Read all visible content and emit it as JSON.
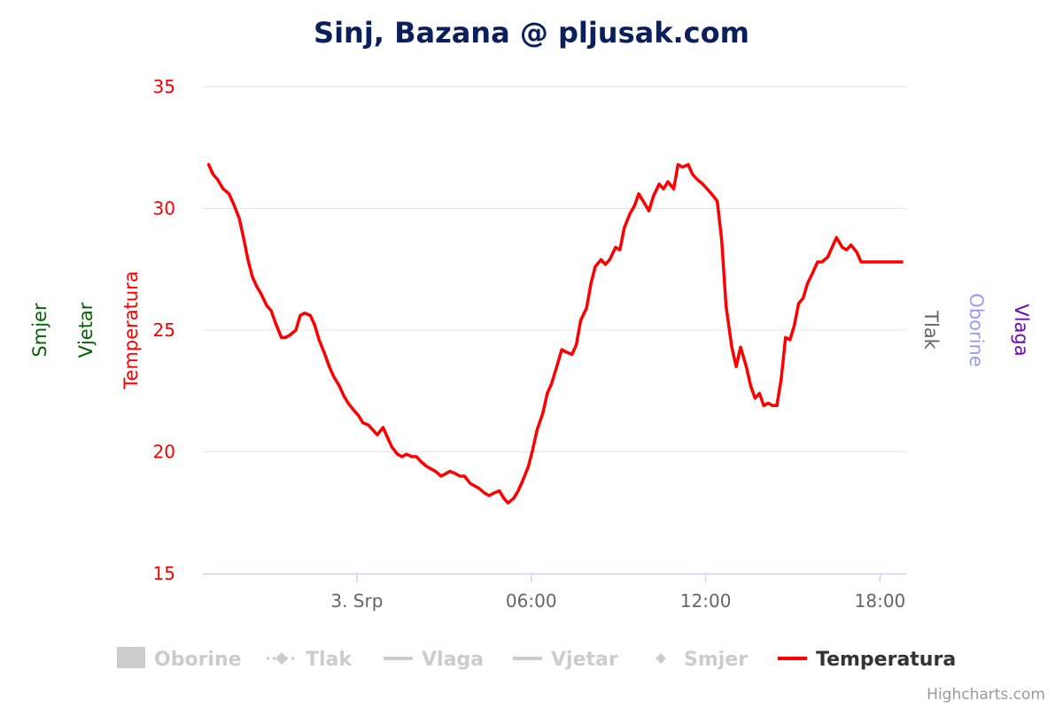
{
  "chart_data": {
    "type": "line",
    "title": "Sinj, Bazana @ pljusak.com",
    "title_color": "#0b1f5c",
    "x_tick_labels": [
      "3. Srp",
      "06:00",
      "12:00",
      "18:00"
    ],
    "x_tick_hours": [
      0,
      6,
      12,
      18
    ],
    "x_range_hours": [
      -5.3,
      18.9
    ],
    "y_axis": {
      "title": "Temperatura",
      "color": "#ff0000",
      "range": [
        15,
        35
      ],
      "ticks": [
        15,
        20,
        25,
        30,
        35
      ]
    },
    "other_axis_titles": {
      "smjer": {
        "label": "Smjer",
        "color": "#006400"
      },
      "vjetar": {
        "label": "Vjetar",
        "color": "#006400"
      },
      "tlak": {
        "label": "Tlak",
        "color": "#666666"
      },
      "oborine": {
        "label": "Oborine",
        "color": "#9999ff"
      },
      "vlaga": {
        "label": "Vlaga",
        "color": "#6a0dad"
      }
    },
    "series": [
      {
        "name": "Temperatura",
        "color": "#ff0000",
        "x_hours": [
          -5.1,
          -4.95,
          -4.8,
          -4.6,
          -4.4,
          -4.25,
          -4.05,
          -3.9,
          -3.75,
          -3.6,
          -3.45,
          -3.3,
          -3.1,
          -2.95,
          -2.8,
          -2.6,
          -2.45,
          -2.3,
          -2.1,
          -1.95,
          -1.8,
          -1.6,
          -1.45,
          -1.3,
          -1.1,
          -0.95,
          -0.8,
          -0.6,
          -0.45,
          -0.3,
          -0.1,
          0.05,
          0.2,
          0.4,
          0.55,
          0.7,
          0.9,
          1.05,
          1.2,
          1.4,
          1.55,
          1.7,
          1.9,
          2.05,
          2.2,
          2.4,
          2.55,
          2.7,
          2.9,
          3.05,
          3.2,
          3.4,
          3.55,
          3.7,
          3.9,
          4.05,
          4.2,
          4.4,
          4.55,
          4.7,
          4.9,
          5.05,
          5.2,
          5.4,
          5.55,
          5.7,
          5.9,
          6.05,
          6.2,
          6.4,
          6.55,
          6.7,
          6.9,
          7.05,
          7.2,
          7.4,
          7.55,
          7.7,
          7.9,
          8.05,
          8.2,
          8.4,
          8.55,
          8.7,
          8.9,
          9.05,
          9.2,
          9.4,
          9.55,
          9.7,
          9.9,
          10.05,
          10.2,
          10.4,
          10.55,
          10.7,
          10.9,
          11.05,
          11.2,
          11.4,
          11.55,
          11.7,
          11.9,
          12.05,
          12.2,
          12.4,
          12.55,
          12.7,
          12.9,
          13.05,
          13.2,
          13.4,
          13.55,
          13.7,
          13.85,
          14.0,
          14.15,
          14.3,
          14.45,
          14.6,
          14.75,
          14.9,
          15.05,
          15.2,
          15.35,
          15.5,
          15.7,
          15.85,
          16.0,
          16.2,
          16.35,
          16.5,
          16.7,
          16.85,
          17.0,
          17.2,
          17.35,
          17.5,
          17.7,
          17.85,
          18.0,
          18.15,
          18.3,
          18.45,
          18.6,
          18.75
        ],
        "values": [
          31.8,
          31.4,
          31.2,
          30.8,
          30.6,
          30.2,
          29.6,
          28.8,
          27.9,
          27.2,
          26.8,
          26.5,
          26.0,
          25.8,
          25.3,
          24.7,
          24.7,
          24.8,
          25.0,
          25.6,
          25.7,
          25.6,
          25.2,
          24.6,
          24.0,
          23.5,
          23.1,
          22.7,
          22.3,
          22.0,
          21.7,
          21.5,
          21.2,
          21.1,
          20.9,
          20.7,
          21.0,
          20.6,
          20.2,
          19.9,
          19.8,
          19.9,
          19.8,
          19.8,
          19.6,
          19.4,
          19.3,
          19.2,
          19.0,
          19.1,
          19.2,
          19.1,
          19.0,
          19.0,
          18.7,
          18.6,
          18.5,
          18.3,
          18.2,
          18.3,
          18.4,
          18.1,
          17.9,
          18.1,
          18.4,
          18.8,
          19.4,
          20.1,
          20.9,
          21.6,
          22.4,
          22.8,
          23.6,
          24.2,
          24.1,
          24.0,
          24.4,
          25.4,
          25.9,
          26.9,
          27.6,
          27.9,
          27.7,
          27.9,
          28.4,
          28.3,
          29.2,
          29.8,
          30.1,
          30.6,
          30.2,
          29.9,
          30.5,
          31.0,
          30.8,
          31.1,
          30.8,
          31.8,
          31.7,
          31.8,
          31.4,
          31.2,
          31.0,
          30.8,
          30.6,
          30.3,
          28.7,
          26.0,
          24.3,
          23.5,
          24.3,
          23.5,
          22.7,
          22.2,
          22.4,
          21.9,
          22.0,
          21.9,
          21.9,
          23.0,
          24.7,
          24.6,
          25.2,
          26.1,
          26.3,
          26.9,
          27.4,
          27.8,
          27.8,
          28.0,
          28.4,
          28.8,
          28.4,
          28.3,
          28.5,
          28.2,
          27.8,
          27.8,
          27.8,
          27.8,
          27.8,
          27.8,
          27.8,
          27.8,
          27.8,
          27.8
        ]
      }
    ],
    "legend": {
      "placement": "bottom",
      "items": [
        {
          "name": "Oborine",
          "symbol": "rect",
          "active": false
        },
        {
          "name": "Tlak",
          "symbol": "dash-diamond",
          "active": false
        },
        {
          "name": "Vlaga",
          "symbol": "line",
          "active": false
        },
        {
          "name": "Vjetar",
          "symbol": "line",
          "active": false
        },
        {
          "name": "Smjer",
          "symbol": "diamond",
          "active": false
        },
        {
          "name": "Temperatura",
          "symbol": "line",
          "active": true,
          "color": "#ff0000"
        }
      ]
    },
    "grid": true
  },
  "credits": "Highcharts.com"
}
